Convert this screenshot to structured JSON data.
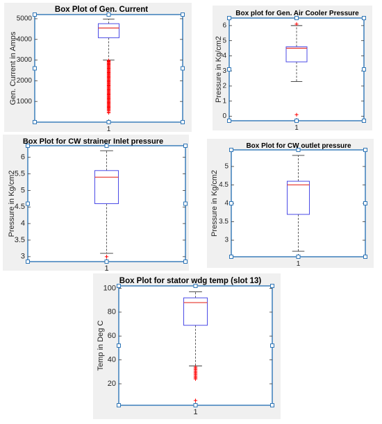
{
  "chart_data": [
    {
      "type": "box",
      "title": "Box Plot of Gen. Current",
      "ylabel": "Gen. Current in Amps",
      "xlabel": "",
      "categories": [
        "1"
      ],
      "ylim": [
        0,
        5200
      ],
      "yticks": [
        1000,
        2000,
        3000,
        4000,
        5000
      ],
      "grid": false,
      "box": {
        "min": 3000,
        "q1": 4080,
        "median": 4550,
        "q3": 4760,
        "max": 4980
      },
      "outliers": [
        2980,
        2950,
        2920,
        2880,
        2840,
        2800,
        2760,
        2720,
        2680,
        2640,
        2600,
        2560,
        2520,
        2480,
        2440,
        2400,
        2360,
        2320,
        2280,
        2240,
        2200,
        2160,
        2120,
        2080,
        2040,
        2000,
        1960,
        1920,
        1880,
        1840,
        1800,
        1760,
        1720,
        1680,
        1640,
        1600,
        1560,
        1520,
        1480,
        1440,
        1400,
        1360,
        1320,
        1280,
        1240,
        1200,
        1160,
        1120,
        1080,
        1040,
        1000,
        960,
        920,
        880,
        840,
        800,
        760,
        720,
        680,
        640,
        600,
        560,
        500,
        450
      ]
    },
    {
      "type": "box",
      "title": "Box plot for Gen. Air Cooler Pressure",
      "ylabel": "Pressure in Kg/cm2",
      "xlabel": "",
      "categories": [
        "1"
      ],
      "ylim": [
        -0.3,
        6.5
      ],
      "yticks": [
        0,
        1,
        2,
        3,
        4,
        5,
        6
      ],
      "grid": false,
      "box": {
        "min": 2.3,
        "q1": 3.6,
        "median": 4.5,
        "q3": 4.6,
        "max": 6.0
      },
      "outliers": [
        6.1,
        0.1
      ]
    },
    {
      "type": "box",
      "title": "Box Plot for CW strainer Inlet pressure",
      "ylabel": "Pressure in Kg/cm2",
      "xlabel": "",
      "categories": [
        "1"
      ],
      "ylim": [
        2.85,
        6.35
      ],
      "yticks": [
        3,
        3.5,
        4,
        4.5,
        5,
        5.5,
        6
      ],
      "grid": false,
      "box": {
        "min": 3.1,
        "q1": 4.6,
        "median": 5.4,
        "q3": 5.6,
        "max": 6.2
      },
      "outliers": [
        3.0
      ]
    },
    {
      "type": "box",
      "title": "Box Plot for CW outlet pressure",
      "ylabel": "Pressure in Kg/cm2",
      "xlabel": "",
      "categories": [
        "1"
      ],
      "ylim": [
        2.55,
        5.45
      ],
      "yticks": [
        3,
        3.5,
        4,
        4.5,
        5
      ],
      "grid": false,
      "box": {
        "min": 2.7,
        "q1": 3.7,
        "median": 4.5,
        "q3": 4.6,
        "max": 5.3
      },
      "outliers": []
    },
    {
      "type": "box",
      "title": "Box Plot for stator wdg temp (slot 13)",
      "ylabel": "Temp in Deg C",
      "xlabel": "",
      "categories": [
        "1"
      ],
      "ylim": [
        2,
        102
      ],
      "yticks": [
        20,
        40,
        60,
        80,
        100
      ],
      "grid": false,
      "box": {
        "min": 35,
        "q1": 69,
        "median": 88,
        "q3": 92,
        "max": 97
      },
      "outliers": [
        34,
        33,
        32,
        31,
        30,
        29,
        28,
        27,
        26,
        25,
        24,
        6
      ]
    }
  ]
}
